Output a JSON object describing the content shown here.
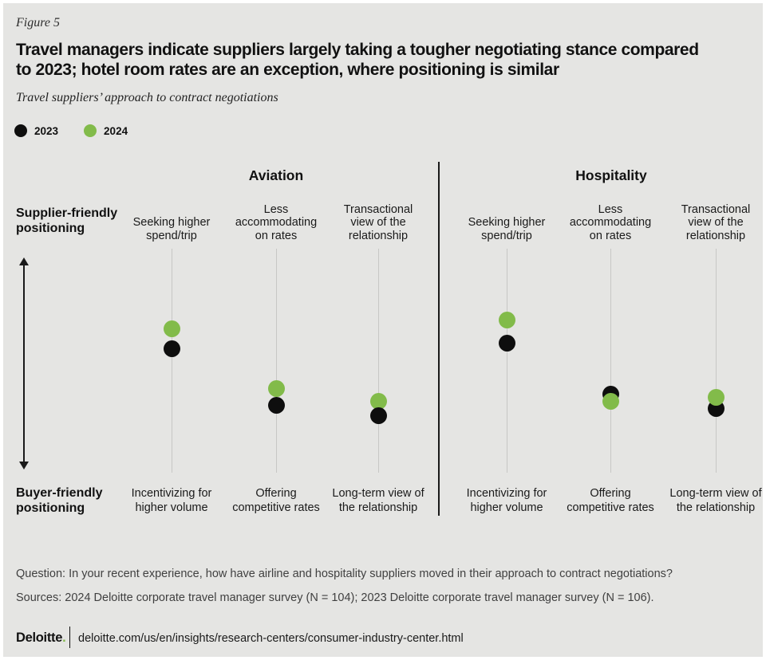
{
  "figure_label": "Figure 5",
  "title": "Travel managers indicate suppliers largely taking a tougher negotiating stance compared to 2023; hotel room rates are an exception, where positioning is similar",
  "subtitle": "Travel suppliers’ approach to contract negotiations",
  "legend": [
    {
      "label": "2023",
      "color": "#0e0e0e"
    },
    {
      "label": "2024",
      "color": "#82bb4a"
    }
  ],
  "axis": {
    "top_label": "Supplier-friendly positioning",
    "bottom_label": "Buyer-friendly positioning"
  },
  "chart_data": {
    "type": "scatter",
    "title": "Travel suppliers’ approach to contract negotiations",
    "y_axis_note": "Qualitative scale from supplier-friendly positioning (top, 0%) to buyer-friendly positioning (bottom, 100%); dot positions read from figure as percent down the axis",
    "legend_entries": [
      "2023",
      "2024"
    ],
    "groups": [
      {
        "title": "Aviation",
        "columns": [
          {
            "supplier_behavior": "Seeking higher spend/trip",
            "buyer_behavior": "Incentivizing for higher volume",
            "points": [
              {
                "year": "2024",
                "y_pct": 35.6
              },
              {
                "year": "2023",
                "y_pct": 44.5
              }
            ]
          },
          {
            "supplier_behavior": "Less accommodating on rates",
            "buyer_behavior": "Offering competitive rates",
            "points": [
              {
                "year": "2024",
                "y_pct": 62.3
              },
              {
                "year": "2023",
                "y_pct": 70.1
              }
            ]
          },
          {
            "supplier_behavior": "Transactional view of the relationship",
            "buyer_behavior": "Long-term view of the relationship",
            "points": [
              {
                "year": "2024",
                "y_pct": 68.0
              },
              {
                "year": "2023",
                "y_pct": 74.4
              }
            ]
          }
        ]
      },
      {
        "title": "Hospitality",
        "columns": [
          {
            "supplier_behavior": "Seeking higher spend/trip",
            "buyer_behavior": "Incentivizing for higher volume",
            "points": [
              {
                "year": "2024",
                "y_pct": 31.7
              },
              {
                "year": "2023",
                "y_pct": 42.3
              }
            ]
          },
          {
            "supplier_behavior": "Less accommodating on rates",
            "buyer_behavior": "Offering competitive rates",
            "points": [
              {
                "year": "2023",
                "y_pct": 64.8
              },
              {
                "year": "2024",
                "y_pct": 68.0
              }
            ]
          },
          {
            "supplier_behavior": "Transactional view of the relationship",
            "buyer_behavior": "Long-term view of the relationship",
            "points": [
              {
                "year": "2023",
                "y_pct": 71.5
              },
              {
                "year": "2024",
                "y_pct": 66.2
              }
            ]
          }
        ]
      }
    ]
  },
  "question": "Question: In your recent experience, how have airline and hospitality suppliers moved in their approach to contract negotiations?",
  "sources": "Sources: 2024 Deloitte corporate travel manager survey (N = 104); 2023 Deloitte corporate travel manager survey (N = 106).",
  "footer": {
    "brand": "Deloitte",
    "brand_period": ".",
    "url": "deloitte.com/us/en/insights/research-centers/consumer-industry-center.html"
  }
}
